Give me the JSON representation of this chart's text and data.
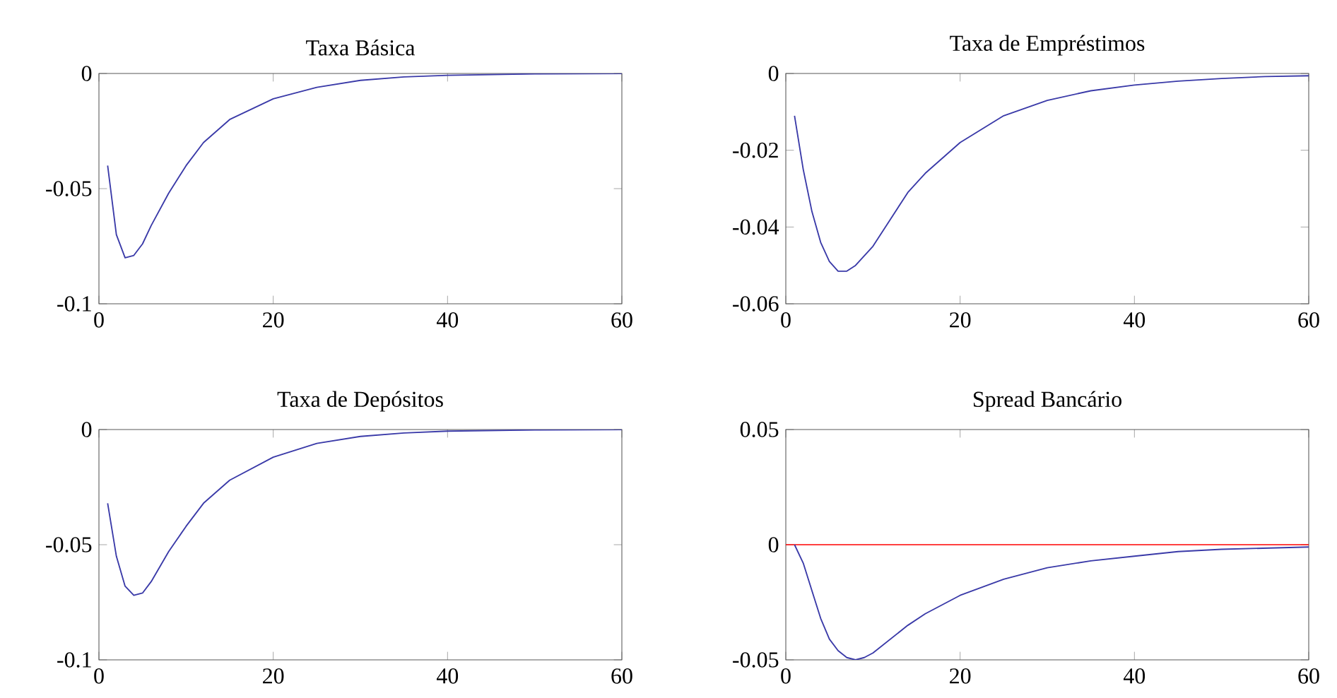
{
  "chart_data": [
    {
      "type": "line",
      "title": "Taxa Básica",
      "x": [
        1,
        2,
        3,
        4,
        5,
        6,
        8,
        10,
        12,
        15,
        20,
        25,
        30,
        35,
        40,
        50,
        60
      ],
      "series": [
        {
          "color": "#3a3aa8",
          "values": [
            -0.04,
            -0.07,
            -0.08,
            -0.079,
            -0.074,
            -0.066,
            -0.052,
            -0.04,
            -0.03,
            -0.02,
            -0.011,
            -0.006,
            -0.003,
            -0.0015,
            -0.0008,
            -0.0002,
            0
          ]
        }
      ],
      "xlim": [
        0,
        60
      ],
      "xticks": [
        0,
        20,
        40,
        60
      ],
      "ylim": [
        -0.1,
        0
      ],
      "yticks": [
        -0.1,
        -0.05,
        0
      ]
    },
    {
      "type": "line",
      "title": "Taxa de Empréstimos",
      "x": [
        1,
        2,
        3,
        4,
        5,
        6,
        7,
        8,
        10,
        12,
        14,
        16,
        20,
        25,
        30,
        35,
        40,
        45,
        50,
        55,
        60
      ],
      "series": [
        {
          "color": "#3a3aa8",
          "values": [
            -0.011,
            -0.025,
            -0.036,
            -0.044,
            -0.049,
            -0.0515,
            -0.0515,
            -0.05,
            -0.045,
            -0.038,
            -0.031,
            -0.026,
            -0.018,
            -0.011,
            -0.007,
            -0.0045,
            -0.003,
            -0.002,
            -0.0013,
            -0.0008,
            -0.0006
          ]
        }
      ],
      "xlim": [
        0,
        60
      ],
      "xticks": [
        0,
        20,
        40,
        60
      ],
      "ylim": [
        -0.06,
        0
      ],
      "yticks": [
        -0.06,
        -0.04,
        -0.02,
        0
      ]
    },
    {
      "type": "line",
      "title": "Taxa de Depósitos",
      "x": [
        1,
        2,
        3,
        4,
        5,
        6,
        8,
        10,
        12,
        15,
        20,
        25,
        30,
        35,
        40,
        50,
        60
      ],
      "series": [
        {
          "color": "#3a3aa8",
          "values": [
            -0.032,
            -0.055,
            -0.068,
            -0.072,
            -0.071,
            -0.066,
            -0.053,
            -0.042,
            -0.032,
            -0.022,
            -0.012,
            -0.006,
            -0.003,
            -0.0015,
            -0.0007,
            -0.0002,
            0
          ]
        }
      ],
      "xlim": [
        0,
        60
      ],
      "xticks": [
        0,
        20,
        40,
        60
      ],
      "ylim": [
        -0.1,
        0
      ],
      "yticks": [
        -0.1,
        -0.05,
        0
      ]
    },
    {
      "type": "line",
      "title": "Spread Bancário",
      "x": [
        1,
        2,
        3,
        4,
        5,
        6,
        7,
        8,
        9,
        10,
        12,
        14,
        16,
        20,
        25,
        30,
        35,
        40,
        45,
        50,
        55,
        60
      ],
      "series": [
        {
          "color": "#3a3aa8",
          "values": [
            0,
            -0.008,
            -0.02,
            -0.032,
            -0.041,
            -0.046,
            -0.049,
            -0.05,
            -0.049,
            -0.047,
            -0.041,
            -0.035,
            -0.03,
            -0.022,
            -0.015,
            -0.01,
            -0.007,
            -0.005,
            -0.003,
            -0.002,
            -0.0015,
            -0.001
          ]
        }
      ],
      "xlim": [
        0,
        60
      ],
      "xticks": [
        0,
        20,
        40,
        60
      ],
      "ylim": [
        -0.05,
        0.05
      ],
      "yticks": [
        -0.05,
        0,
        0.05
      ],
      "ref_lines": [
        {
          "axis": "y",
          "value": 0,
          "color": "#ff0000"
        }
      ]
    }
  ]
}
